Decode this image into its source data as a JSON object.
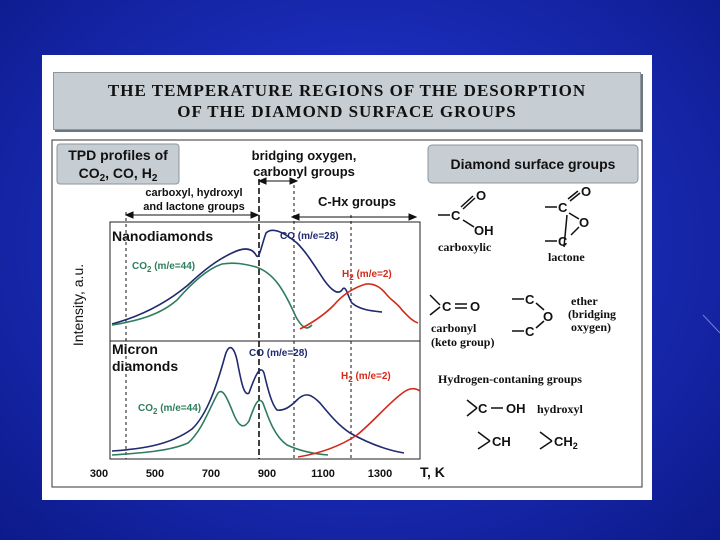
{
  "title": {
    "line1": "THE TEMPERATURE REGIONS OF THE DESORPTION",
    "line2": "OF THE DIAMOND SURFACE GROUPS"
  },
  "colors": {
    "co": "#202a6e",
    "co2": "#2e7d5c",
    "h2": "#d42a1a",
    "box": "#c6cdd3"
  },
  "tpd_box": {
    "line1": "TPD profiles of",
    "line2": "CO",
    "line3": ", CO, H",
    "sub2": "2"
  },
  "region_labels": {
    "bridging1": "bridging oxygen,",
    "bridging2": "carbonyl groups",
    "carboxyl1": "carboxyl, hydroxyl",
    "carboxyl2": "and lactone groups",
    "chx": "C-Hx groups"
  },
  "y_axis_label": "Intensity, a.u.",
  "x_axis": {
    "ticks": [
      "300",
      "500",
      "700",
      "900",
      "1100",
      "1300"
    ],
    "unit": "T, K"
  },
  "panels": {
    "nano": {
      "name": "Nanodiamonds",
      "co_label": "CO (m/e=28)",
      "co2_label_pre": "CO",
      "co2_label_post": " (m/e=44)",
      "h2_label_pre": "H",
      "h2_label_post": " (m/e=2)",
      "sub": "2"
    },
    "micron": {
      "name1": "Micron",
      "name2": "diamonds",
      "co_label": "CO (m/e=28)",
      "co2_label_pre": "CO",
      "co2_label_post": " (m/e=44)",
      "h2_label_pre": "H",
      "h2_label_post": " (m/e=2)",
      "sub": "2"
    }
  },
  "groups_box": "Diamond surface groups",
  "groups": {
    "carboxylic": "carboxylic",
    "lactone": "lactone",
    "carbonyl1": "carbonyl",
    "carbonyl2": "(keto group)",
    "ether1": "ether",
    "ether2": "(bridging",
    "ether3": "oxygen)",
    "hydrogen_title": "Hydrogen-contaning groups",
    "hydroxyl": "hydroxyl",
    "O": "O",
    "C": "C",
    "OH": "OH",
    "CH": "CH",
    "CH2": "CH",
    "sub2": "2",
    "dash": "—"
  }
}
